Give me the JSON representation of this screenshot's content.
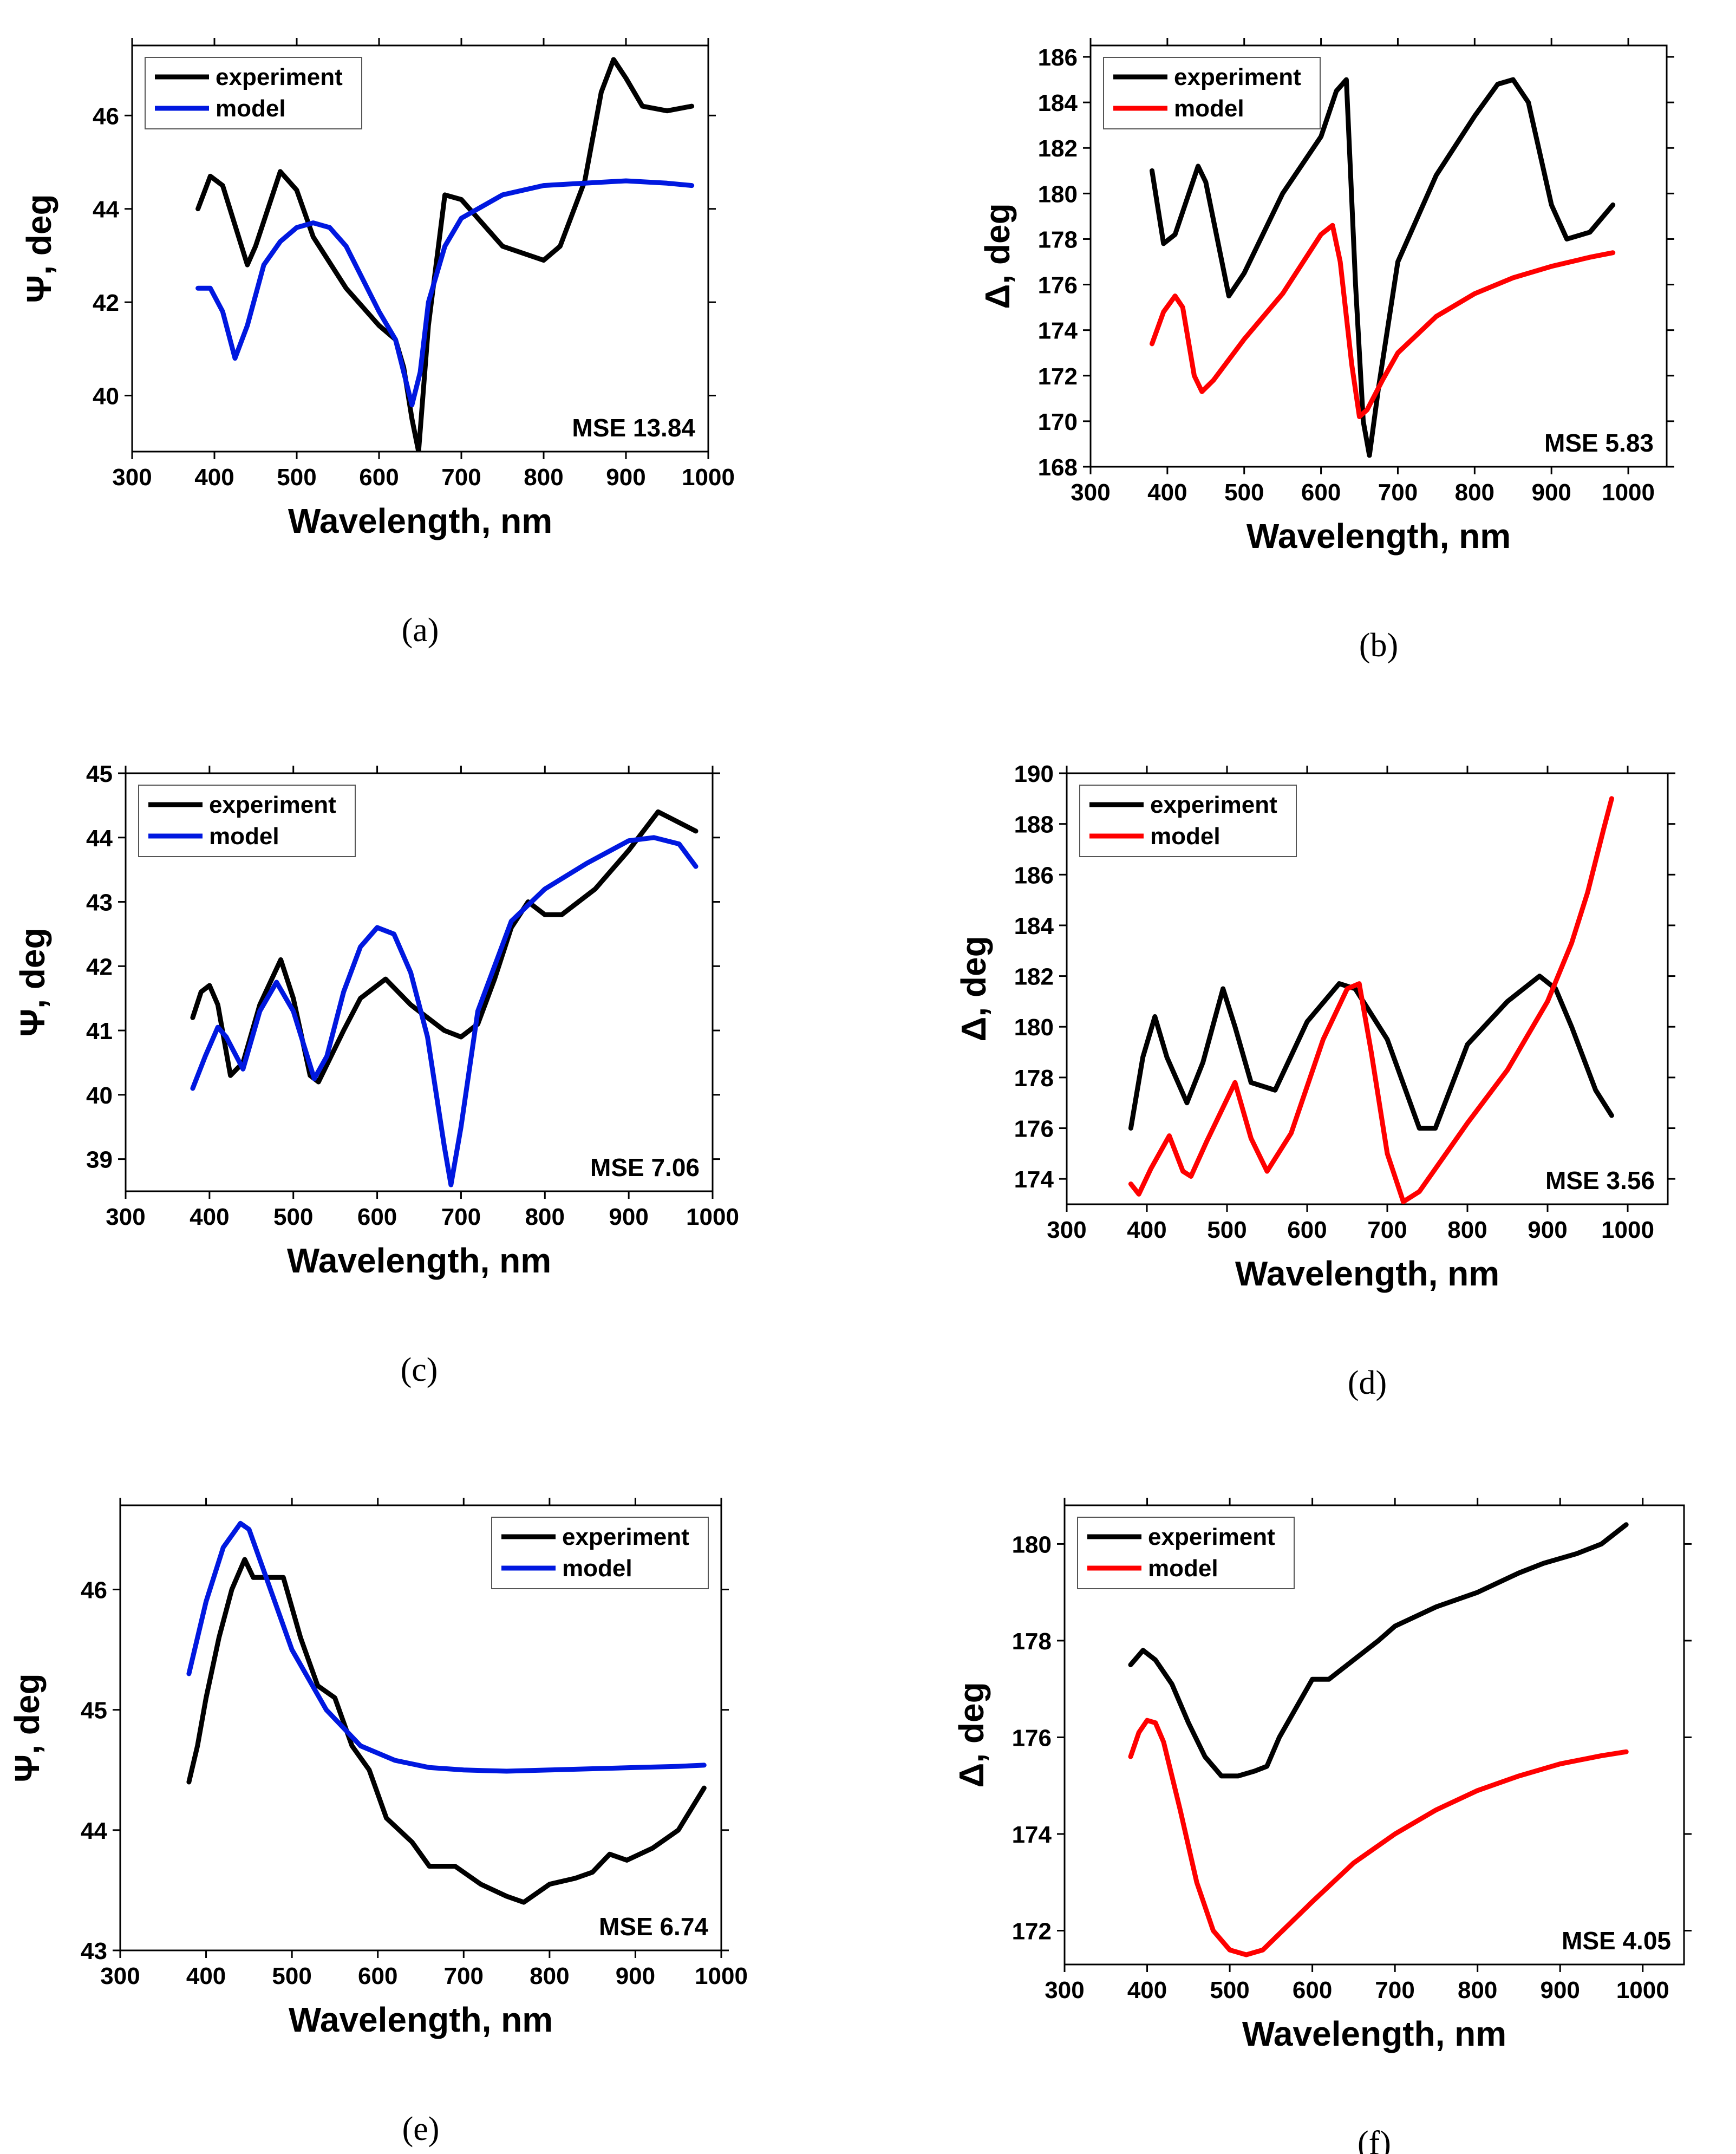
{
  "chart_data": [
    {
      "type": "line",
      "panel_label": "(a)",
      "xlabel": "Wavelength, nm",
      "ylabel": "Ψ, deg",
      "xlim": [
        300,
        1000
      ],
      "ylim": [
        38.8,
        47.5
      ],
      "xticks": [
        300,
        400,
        500,
        600,
        700,
        800,
        900,
        1000
      ],
      "yticks": [
        40,
        42,
        44,
        46
      ],
      "annotation": "MSE 13.84",
      "legend_position": "top-left",
      "series": [
        {
          "name": "experiment",
          "color": "#000000",
          "x": [
            380,
            395,
            410,
            440,
            450,
            480,
            500,
            520,
            560,
            600,
            620,
            630,
            640,
            648,
            660,
            680,
            700,
            750,
            800,
            820,
            850,
            870,
            885,
            900,
            920,
            950,
            980
          ],
          "y": [
            44.0,
            44.7,
            44.5,
            42.8,
            43.2,
            44.8,
            44.4,
            43.4,
            42.3,
            41.5,
            41.2,
            40.6,
            39.5,
            38.8,
            41.5,
            44.3,
            44.2,
            43.2,
            42.9,
            43.2,
            44.6,
            46.5,
            47.2,
            46.8,
            46.2,
            46.1,
            46.2
          ]
        },
        {
          "name": "model",
          "color": "#0018e0",
          "x": [
            380,
            395,
            410,
            425,
            440,
            460,
            480,
            500,
            520,
            540,
            560,
            580,
            600,
            620,
            640,
            650,
            660,
            680,
            700,
            750,
            800,
            850,
            900,
            950,
            980
          ],
          "y": [
            42.3,
            42.3,
            41.8,
            40.8,
            41.5,
            42.8,
            43.3,
            43.6,
            43.7,
            43.6,
            43.2,
            42.5,
            41.8,
            41.2,
            39.8,
            40.5,
            42.0,
            43.2,
            43.8,
            44.3,
            44.5,
            44.55,
            44.6,
            44.55,
            44.5
          ]
        }
      ]
    },
    {
      "type": "line",
      "panel_label": "(b)",
      "xlabel": "Wavelength, nm",
      "ylabel": "Δ, deg",
      "xlim": [
        300,
        1050
      ],
      "ylim": [
        168,
        186.5
      ],
      "xticks": [
        300,
        400,
        500,
        600,
        700,
        800,
        900,
        1000
      ],
      "yticks": [
        168,
        170,
        172,
        174,
        176,
        178,
        180,
        182,
        184,
        186
      ],
      "annotation": "MSE 5.83",
      "legend_position": "top-left",
      "series": [
        {
          "name": "experiment",
          "color": "#000000",
          "x": [
            380,
            395,
            410,
            440,
            450,
            480,
            500,
            550,
            600,
            620,
            633,
            645,
            655,
            663,
            675,
            700,
            750,
            800,
            830,
            850,
            870,
            900,
            920,
            950,
            980
          ],
          "y": [
            181.0,
            177.8,
            178.2,
            181.2,
            180.5,
            175.5,
            176.5,
            180.0,
            182.5,
            184.5,
            185.0,
            176.0,
            170.0,
            168.5,
            171.5,
            177.0,
            180.8,
            183.4,
            184.8,
            185.0,
            184.0,
            179.5,
            178.0,
            178.3,
            179.5
          ]
        },
        {
          "name": "model",
          "color": "#ff0000",
          "x": [
            380,
            395,
            410,
            420,
            435,
            445,
            460,
            500,
            550,
            600,
            615,
            625,
            640,
            650,
            660,
            680,
            700,
            750,
            800,
            850,
            900,
            950,
            980
          ],
          "y": [
            173.4,
            174.8,
            175.5,
            175.0,
            172.0,
            171.3,
            171.8,
            173.6,
            175.6,
            178.2,
            178.6,
            177.0,
            172.5,
            170.2,
            170.5,
            171.8,
            173.0,
            174.6,
            175.6,
            176.3,
            176.8,
            177.2,
            177.4
          ]
        }
      ]
    },
    {
      "type": "line",
      "panel_label": "(c)",
      "xlabel": "Wavelength, nm",
      "ylabel": "Ψ, deg",
      "xlim": [
        300,
        1000
      ],
      "ylim": [
        38.5,
        45
      ],
      "xticks": [
        300,
        400,
        500,
        600,
        700,
        800,
        900,
        1000
      ],
      "yticks": [
        39,
        40,
        41,
        42,
        43,
        44,
        45
      ],
      "annotation": "MSE 7.06",
      "legend_position": "top-left",
      "series": [
        {
          "name": "experiment",
          "color": "#000000",
          "x": [
            380,
            390,
            400,
            410,
            425,
            440,
            460,
            485,
            500,
            520,
            530,
            560,
            580,
            610,
            640,
            680,
            700,
            720,
            740,
            760,
            780,
            800,
            820,
            860,
            900,
            935,
            950,
            980
          ],
          "y": [
            41.2,
            41.6,
            41.7,
            41.4,
            40.3,
            40.5,
            41.4,
            42.1,
            41.5,
            40.3,
            40.2,
            41.0,
            41.5,
            41.8,
            41.4,
            41.0,
            40.9,
            41.1,
            41.8,
            42.6,
            43.0,
            42.8,
            42.8,
            43.2,
            43.8,
            44.4,
            44.3,
            44.1
          ]
        },
        {
          "name": "model",
          "color": "#0018e0",
          "x": [
            380,
            395,
            410,
            420,
            440,
            460,
            480,
            500,
            525,
            540,
            560,
            580,
            600,
            620,
            640,
            660,
            680,
            688,
            700,
            720,
            760,
            800,
            850,
            900,
            930,
            960,
            980
          ],
          "y": [
            40.1,
            40.6,
            41.05,
            40.9,
            40.4,
            41.3,
            41.75,
            41.3,
            40.25,
            40.6,
            41.6,
            42.3,
            42.6,
            42.5,
            41.9,
            40.9,
            39.2,
            38.6,
            39.5,
            41.3,
            42.7,
            43.2,
            43.6,
            43.95,
            44.0,
            43.9,
            43.55
          ]
        }
      ]
    },
    {
      "type": "line",
      "panel_label": "(d)",
      "xlabel": "Wavelength, nm",
      "ylabel": "Δ, deg",
      "xlim": [
        300,
        1050
      ],
      "ylim": [
        173,
        190
      ],
      "xticks": [
        300,
        400,
        500,
        600,
        700,
        800,
        900,
        1000
      ],
      "yticks": [
        174,
        176,
        178,
        180,
        182,
        184,
        186,
        188,
        190
      ],
      "annotation": "MSE 3.56",
      "legend_position": "top-left",
      "series": [
        {
          "name": "experiment",
          "color": "#000000",
          "x": [
            380,
            395,
            410,
            425,
            450,
            470,
            495,
            510,
            530,
            560,
            600,
            640,
            660,
            700,
            740,
            760,
            800,
            850,
            890,
            910,
            930,
            960,
            980
          ],
          "y": [
            176.0,
            178.8,
            180.4,
            178.8,
            177.0,
            178.6,
            181.5,
            180.0,
            177.8,
            177.5,
            180.2,
            181.7,
            181.5,
            179.5,
            176.0,
            176.0,
            179.3,
            181.0,
            182.0,
            181.5,
            180.0,
            177.5,
            176.5
          ]
        },
        {
          "name": "model",
          "color": "#ff0000",
          "x": [
            380,
            390,
            405,
            428,
            445,
            455,
            475,
            510,
            530,
            550,
            580,
            620,
            650,
            665,
            680,
            700,
            720,
            740,
            800,
            850,
            900,
            930,
            950,
            970,
            980
          ],
          "y": [
            173.8,
            173.4,
            174.4,
            175.7,
            174.3,
            174.1,
            175.5,
            177.8,
            175.6,
            174.3,
            175.8,
            179.5,
            181.5,
            181.7,
            179.0,
            175.0,
            173.1,
            173.5,
            176.2,
            178.3,
            181.0,
            183.3,
            185.3,
            187.8,
            189.0
          ]
        }
      ]
    },
    {
      "type": "line",
      "panel_label": "(e)",
      "xlabel": "Wavelength, nm",
      "ylabel": "Ψ, deg",
      "xlim": [
        300,
        1000
      ],
      "ylim": [
        43,
        46.7
      ],
      "xticks": [
        300,
        400,
        500,
        600,
        700,
        800,
        900,
        1000
      ],
      "yticks": [
        43,
        44,
        45,
        46
      ],
      "annotation": "MSE 6.74",
      "legend_position": "top-right",
      "series": [
        {
          "name": "experiment",
          "color": "#000000",
          "x": [
            380,
            390,
            400,
            415,
            430,
            445,
            455,
            470,
            490,
            510,
            530,
            550,
            570,
            590,
            610,
            640,
            660,
            690,
            720,
            750,
            770,
            800,
            830,
            850,
            870,
            890,
            920,
            950,
            980
          ],
          "y": [
            44.4,
            44.7,
            45.1,
            45.6,
            46.0,
            46.25,
            46.1,
            46.1,
            46.1,
            45.6,
            45.2,
            45.1,
            44.7,
            44.5,
            44.1,
            43.9,
            43.7,
            43.7,
            43.55,
            43.45,
            43.4,
            43.55,
            43.6,
            43.65,
            43.8,
            43.75,
            43.85,
            44.0,
            44.35
          ]
        },
        {
          "name": "model",
          "color": "#0018e0",
          "x": [
            380,
            400,
            420,
            440,
            450,
            470,
            500,
            540,
            580,
            620,
            660,
            700,
            750,
            800,
            850,
            900,
            950,
            980
          ],
          "y": [
            45.3,
            45.9,
            46.35,
            46.55,
            46.5,
            46.1,
            45.5,
            45.0,
            44.7,
            44.58,
            44.52,
            44.5,
            44.49,
            44.5,
            44.51,
            44.52,
            44.53,
            44.54
          ]
        }
      ]
    },
    {
      "type": "line",
      "panel_label": "(f)",
      "xlabel": "Wavelength, nm",
      "ylabel": "Δ, deg",
      "xlim": [
        300,
        1050
      ],
      "ylim": [
        171.3,
        180.8
      ],
      "xticks": [
        300,
        400,
        500,
        600,
        700,
        800,
        900,
        1000
      ],
      "yticks": [
        172,
        174,
        176,
        178,
        180
      ],
      "annotation": "MSE 4.05",
      "legend_position": "top-left",
      "series": [
        {
          "name": "experiment",
          "color": "#000000",
          "x": [
            380,
            395,
            410,
            430,
            450,
            470,
            490,
            510,
            530,
            545,
            560,
            580,
            600,
            620,
            650,
            680,
            700,
            750,
            800,
            850,
            880,
            920,
            950,
            980
          ],
          "y": [
            177.5,
            177.8,
            177.6,
            177.1,
            176.3,
            175.6,
            175.2,
            175.2,
            175.3,
            175.4,
            176.0,
            176.6,
            177.2,
            177.2,
            177.6,
            178.0,
            178.3,
            178.7,
            179.0,
            179.4,
            179.6,
            179.8,
            180.0,
            180.4
          ]
        },
        {
          "name": "model",
          "color": "#ff0000",
          "x": [
            380,
            390,
            400,
            410,
            420,
            440,
            460,
            480,
            500,
            520,
            540,
            570,
            600,
            650,
            700,
            750,
            800,
            850,
            900,
            950,
            980
          ],
          "y": [
            175.6,
            176.1,
            176.35,
            176.3,
            175.9,
            174.5,
            173.0,
            172.0,
            171.6,
            171.5,
            171.6,
            172.1,
            172.6,
            173.4,
            174.0,
            174.5,
            174.9,
            175.2,
            175.45,
            175.62,
            175.7
          ]
        }
      ]
    }
  ]
}
